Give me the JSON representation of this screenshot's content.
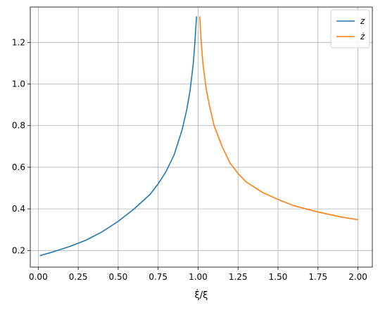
{
  "chart_data": {
    "type": "line",
    "title": "",
    "xlabel": "ξ̇/ξ",
    "ylabel": "",
    "xlim": [
      -0.05,
      2.09
    ],
    "ylim": [
      0.12,
      1.37
    ],
    "xticks": [
      0.0,
      0.25,
      0.5,
      0.75,
      1.0,
      1.25,
      1.5,
      1.75,
      2.0
    ],
    "xtick_labels": [
      "0.00",
      "0.25",
      "0.50",
      "0.75",
      "1.00",
      "1.25",
      "1.50",
      "1.75",
      "2.00"
    ],
    "yticks": [
      0.2,
      0.4,
      0.6,
      0.8,
      1.0,
      1.2
    ],
    "ytick_labels": [
      "0.2",
      "0.4",
      "0.6",
      "0.8",
      "1.0",
      "1.2"
    ],
    "grid": true,
    "legend_position": "top-right",
    "series": [
      {
        "name": "z",
        "color": "#1f77b4",
        "x": [
          0.01,
          0.1,
          0.2,
          0.3,
          0.4,
          0.5,
          0.6,
          0.7,
          0.75,
          0.8,
          0.85,
          0.9,
          0.93,
          0.95,
          0.97,
          0.98,
          0.99
        ],
        "y": [
          0.175,
          0.195,
          0.22,
          0.25,
          0.29,
          0.34,
          0.4,
          0.47,
          0.52,
          0.58,
          0.66,
          0.78,
          0.88,
          0.97,
          1.1,
          1.2,
          1.325
        ]
      },
      {
        "name": "ż",
        "color": "#ff7f0e",
        "x": [
          1.01,
          1.02,
          1.03,
          1.05,
          1.07,
          1.1,
          1.15,
          1.2,
          1.25,
          1.3,
          1.4,
          1.5,
          1.6,
          1.75,
          1.9,
          2.0
        ],
        "y": [
          1.325,
          1.2,
          1.1,
          0.98,
          0.9,
          0.8,
          0.7,
          0.62,
          0.57,
          0.53,
          0.48,
          0.445,
          0.415,
          0.385,
          0.36,
          0.348
        ]
      }
    ]
  }
}
